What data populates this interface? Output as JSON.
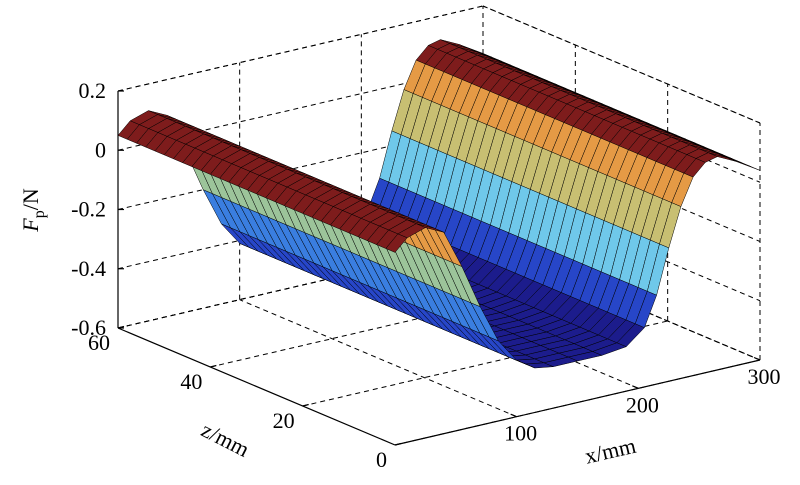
{
  "chart_data": {
    "type": "surface",
    "xlabel": "x/mm",
    "zlabel": "z/mm",
    "ylabel": [
      "F",
      "p",
      "/N"
    ],
    "x": [
      0,
      10,
      25,
      40,
      55,
      70,
      85,
      100,
      115,
      130,
      150,
      170,
      190,
      205,
      215,
      225,
      235,
      245,
      255,
      265,
      280,
      300
    ],
    "values": [
      0.05,
      0.09,
      0.11,
      0.08,
      -0.05,
      -0.2,
      -0.33,
      -0.41,
      -0.45,
      -0.46,
      -0.46,
      -0.46,
      -0.45,
      -0.4,
      -0.3,
      -0.15,
      -0.02,
      0.07,
      0.11,
      0.12,
      0.09,
      0.04
    ],
    "z": [
      0,
      2,
      4,
      6,
      8,
      10,
      12,
      14,
      16,
      18,
      20,
      22,
      24,
      26,
      28,
      30,
      32,
      34,
      36,
      38,
      40,
      42,
      44,
      46,
      48,
      50,
      52,
      54,
      56,
      58,
      60
    ],
    "xlim": [
      0,
      300
    ],
    "xticks": [
      100,
      200,
      300
    ],
    "zlim": [
      0,
      60
    ],
    "zticks": [
      0,
      20,
      40,
      60
    ],
    "ylim": [
      -0.6,
      0.2
    ],
    "yticks": [
      -0.6,
      -0.4,
      -0.2,
      0,
      0.2
    ],
    "grid": true,
    "colormap": [
      "#1c1c8c",
      "#2746c8",
      "#3a7ee0",
      "#6fc8ea",
      "#9cc49a",
      "#c8bf72",
      "#e59a45",
      "#7e1c1c"
    ]
  }
}
